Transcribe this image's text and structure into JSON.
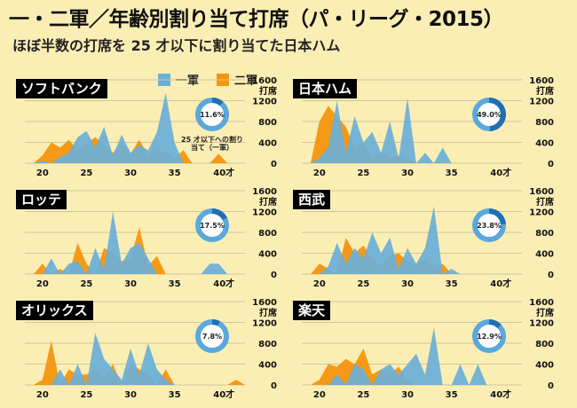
{
  "title": "一・二軍／年齢別割り当て打席（パ・リーグ・2015）",
  "subtitle": "ほぼ半数の打席を 25 才以下に割り当てた日本ハム",
  "legend": {
    "first": "一軍",
    "second": "二軍"
  },
  "colors": {
    "first": "#6aafd9",
    "second": "#f4940f",
    "grid": "#cfc79a",
    "donut": "#5aa8dc",
    "donutDark": "#1f6fb3"
  },
  "y_axis": {
    "ticks": [
      0,
      400,
      800,
      1200,
      1600
    ],
    "unit": "打席"
  },
  "x_axis": {
    "ticks": [
      "20",
      "25",
      "30",
      "35",
      "40才"
    ]
  },
  "callout": {
    "text": "25 才以下への割り当て（一軍）"
  },
  "chart_data": [
    {
      "type": "area",
      "team": "ソフトバンク",
      "donut_pct": 11.6,
      "donut_label": "11.6%",
      "xlim": [
        18,
        43
      ],
      "ylim": [
        0,
        1600
      ],
      "x": [
        18,
        19,
        20,
        21,
        22,
        23,
        24,
        25,
        26,
        27,
        28,
        29,
        30,
        31,
        32,
        33,
        34,
        35,
        36,
        37,
        38,
        39,
        40,
        41,
        42,
        43
      ],
      "series": [
        {
          "name": "一軍",
          "values": [
            0,
            0,
            50,
            0,
            120,
            200,
            500,
            620,
            300,
            700,
            150,
            550,
            200,
            350,
            250,
            600,
            1350,
            400,
            0,
            0,
            0,
            0,
            0,
            0,
            0,
            0
          ]
        },
        {
          "name": "二軍",
          "values": [
            0,
            0,
            150,
            400,
            300,
            450,
            250,
            380,
            500,
            350,
            200,
            400,
            180,
            450,
            150,
            300,
            200,
            100,
            250,
            0,
            0,
            0,
            180,
            0,
            0,
            0
          ]
        }
      ]
    },
    {
      "type": "area",
      "team": "日本ハム",
      "donut_pct": 49.0,
      "donut_label": "49.0%",
      "xlim": [
        18,
        43
      ],
      "ylim": [
        0,
        1600
      ],
      "x": [
        18,
        19,
        20,
        21,
        22,
        23,
        24,
        25,
        26,
        27,
        28,
        29,
        30,
        31,
        32,
        33,
        34,
        35,
        36,
        37,
        38,
        39,
        40,
        41,
        42,
        43
      ],
      "series": [
        {
          "name": "一軍",
          "values": [
            0,
            0,
            100,
            300,
            1200,
            200,
            900,
            400,
            600,
            200,
            800,
            100,
            1250,
            0,
            200,
            0,
            300,
            0,
            0,
            0,
            0,
            0,
            0,
            0,
            0,
            0
          ]
        },
        {
          "name": "二軍",
          "values": [
            0,
            0,
            800,
            1100,
            900,
            700,
            300,
            400,
            100,
            200,
            100,
            150,
            100,
            0,
            0,
            0,
            0,
            0,
            0,
            0,
            0,
            0,
            0,
            0,
            0,
            0
          ]
        }
      ]
    },
    {
      "type": "area",
      "team": "ロッテ",
      "donut_pct": 17.5,
      "donut_label": "17.5%",
      "xlim": [
        18,
        43
      ],
      "ylim": [
        0,
        1600
      ],
      "x": [
        18,
        19,
        20,
        21,
        22,
        23,
        24,
        25,
        26,
        27,
        28,
        29,
        30,
        31,
        32,
        33,
        34,
        35,
        36,
        37,
        38,
        39,
        40,
        41,
        42,
        43
      ],
      "series": [
        {
          "name": "一軍",
          "values": [
            0,
            0,
            0,
            300,
            0,
            200,
            250,
            0,
            500,
            100,
            1200,
            200,
            500,
            600,
            300,
            0,
            0,
            0,
            0,
            0,
            0,
            200,
            200,
            0,
            0,
            0
          ]
        },
        {
          "name": "二軍",
          "values": [
            0,
            0,
            200,
            0,
            100,
            0,
            600,
            200,
            0,
            500,
            400,
            250,
            300,
            900,
            150,
            350,
            0,
            0,
            0,
            0,
            0,
            0,
            0,
            0,
            0,
            0
          ]
        }
      ]
    },
    {
      "type": "area",
      "team": "西武",
      "donut_pct": 23.8,
      "donut_label": "23.8%",
      "xlim": [
        18,
        43
      ],
      "ylim": [
        0,
        1600
      ],
      "x": [
        18,
        19,
        20,
        21,
        22,
        23,
        24,
        25,
        26,
        27,
        28,
        29,
        30,
        31,
        32,
        33,
        34,
        35,
        36,
        37,
        38,
        39,
        40,
        41,
        42,
        43
      ],
      "series": [
        {
          "name": "一軍",
          "values": [
            0,
            0,
            0,
            150,
            600,
            200,
            500,
            300,
            800,
            400,
            700,
            100,
            500,
            200,
            500,
            1300,
            0,
            100,
            0,
            0,
            0,
            0,
            0,
            0,
            0,
            0
          ]
        },
        {
          "name": "二軍",
          "values": [
            0,
            0,
            200,
            100,
            0,
            700,
            400,
            550,
            300,
            150,
            350,
            400,
            250,
            200,
            300,
            100,
            200,
            0,
            0,
            0,
            0,
            0,
            0,
            0,
            0,
            0
          ]
        }
      ]
    },
    {
      "type": "area",
      "team": "オリックス",
      "donut_pct": 7.8,
      "donut_label": "7.8%",
      "xlim": [
        18,
        43
      ],
      "ylim": [
        0,
        1600
      ],
      "x": [
        18,
        19,
        20,
        21,
        22,
        23,
        24,
        25,
        26,
        27,
        28,
        29,
        30,
        31,
        32,
        33,
        34,
        35,
        36,
        37,
        38,
        39,
        40,
        41,
        42,
        43
      ],
      "series": [
        {
          "name": "一軍",
          "values": [
            0,
            0,
            0,
            0,
            300,
            0,
            400,
            0,
            1000,
            500,
            300,
            100,
            700,
            200,
            800,
            300,
            100,
            0,
            0,
            0,
            0,
            0,
            0,
            0,
            0,
            0
          ]
        },
        {
          "name": "二軍",
          "values": [
            0,
            0,
            100,
            850,
            0,
            300,
            200,
            200,
            300,
            150,
            400,
            0,
            400,
            300,
            200,
            0,
            300,
            0,
            0,
            0,
            0,
            0,
            0,
            0,
            100,
            0
          ]
        }
      ]
    },
    {
      "type": "area",
      "team": "楽天",
      "donut_pct": 12.9,
      "donut_label": "12.9%",
      "xlim": [
        18,
        43
      ],
      "ylim": [
        0,
        1600
      ],
      "x": [
        18,
        19,
        20,
        21,
        22,
        23,
        24,
        25,
        26,
        27,
        28,
        29,
        30,
        31,
        32,
        33,
        34,
        35,
        36,
        37,
        38,
        39,
        40,
        41,
        42,
        43
      ],
      "series": [
        {
          "name": "一軍",
          "values": [
            0,
            0,
            0,
            0,
            200,
            0,
            400,
            300,
            0,
            300,
            400,
            200,
            400,
            600,
            200,
            1100,
            0,
            0,
            400,
            0,
            400,
            0,
            0,
            0,
            0,
            0
          ]
        },
        {
          "name": "二軍",
          "values": [
            0,
            0,
            100,
            400,
            350,
            500,
            400,
            700,
            200,
            300,
            200,
            350,
            100,
            0,
            0,
            0,
            0,
            0,
            0,
            0,
            0,
            0,
            0,
            0,
            0,
            0
          ]
        }
      ]
    }
  ]
}
